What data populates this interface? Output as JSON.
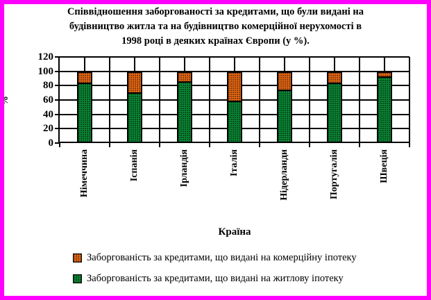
{
  "frame": {
    "border_color": "#FF00FF",
    "background_color": "#FFFFFF"
  },
  "chart_data": {
    "type": "bar",
    "stacked": true,
    "title": "Співвідношення заборгованості за кредитами, що були видані на\nбудівництво житла та на будівництво комерційної нерухомості в\n1998 році в деяких країнах Європи (у %).",
    "xlabel": "Країна",
    "ylabel": "%",
    "ylim": [
      0,
      120
    ],
    "yticks": [
      0,
      20,
      40,
      60,
      80,
      100,
      120
    ],
    "grid": true,
    "bar_total": 100,
    "legend_position": "bottom",
    "categories": [
      "Німеччина",
      "Іспанія",
      "Ірландія",
      "Італія",
      "Нідерланди",
      "Португалія",
      "Швеція"
    ],
    "series": [
      {
        "name": "Заборгованість за кредитами, що видані на житлову іпотеку",
        "color": "#0B8C38",
        "pattern_dot_color": "#03491B",
        "values": [
          84,
          71,
          86,
          59,
          75,
          84,
          93
        ]
      },
      {
        "name": "Заборгованість за кредитами, що видані на комерційну іпотеку",
        "color": "#F1690D",
        "pattern_dot_color": "#7B3A10",
        "values": [
          16,
          29,
          14,
          41,
          25,
          16,
          7
        ]
      }
    ],
    "legend": [
      {
        "label": "Заборгованість за кредитами, що видані на комерційну іпотеку",
        "swatch": "commercial"
      },
      {
        "label": "Заборгованість за кредитами, що видані на житлову іпотеку",
        "swatch": "residential"
      }
    ]
  }
}
